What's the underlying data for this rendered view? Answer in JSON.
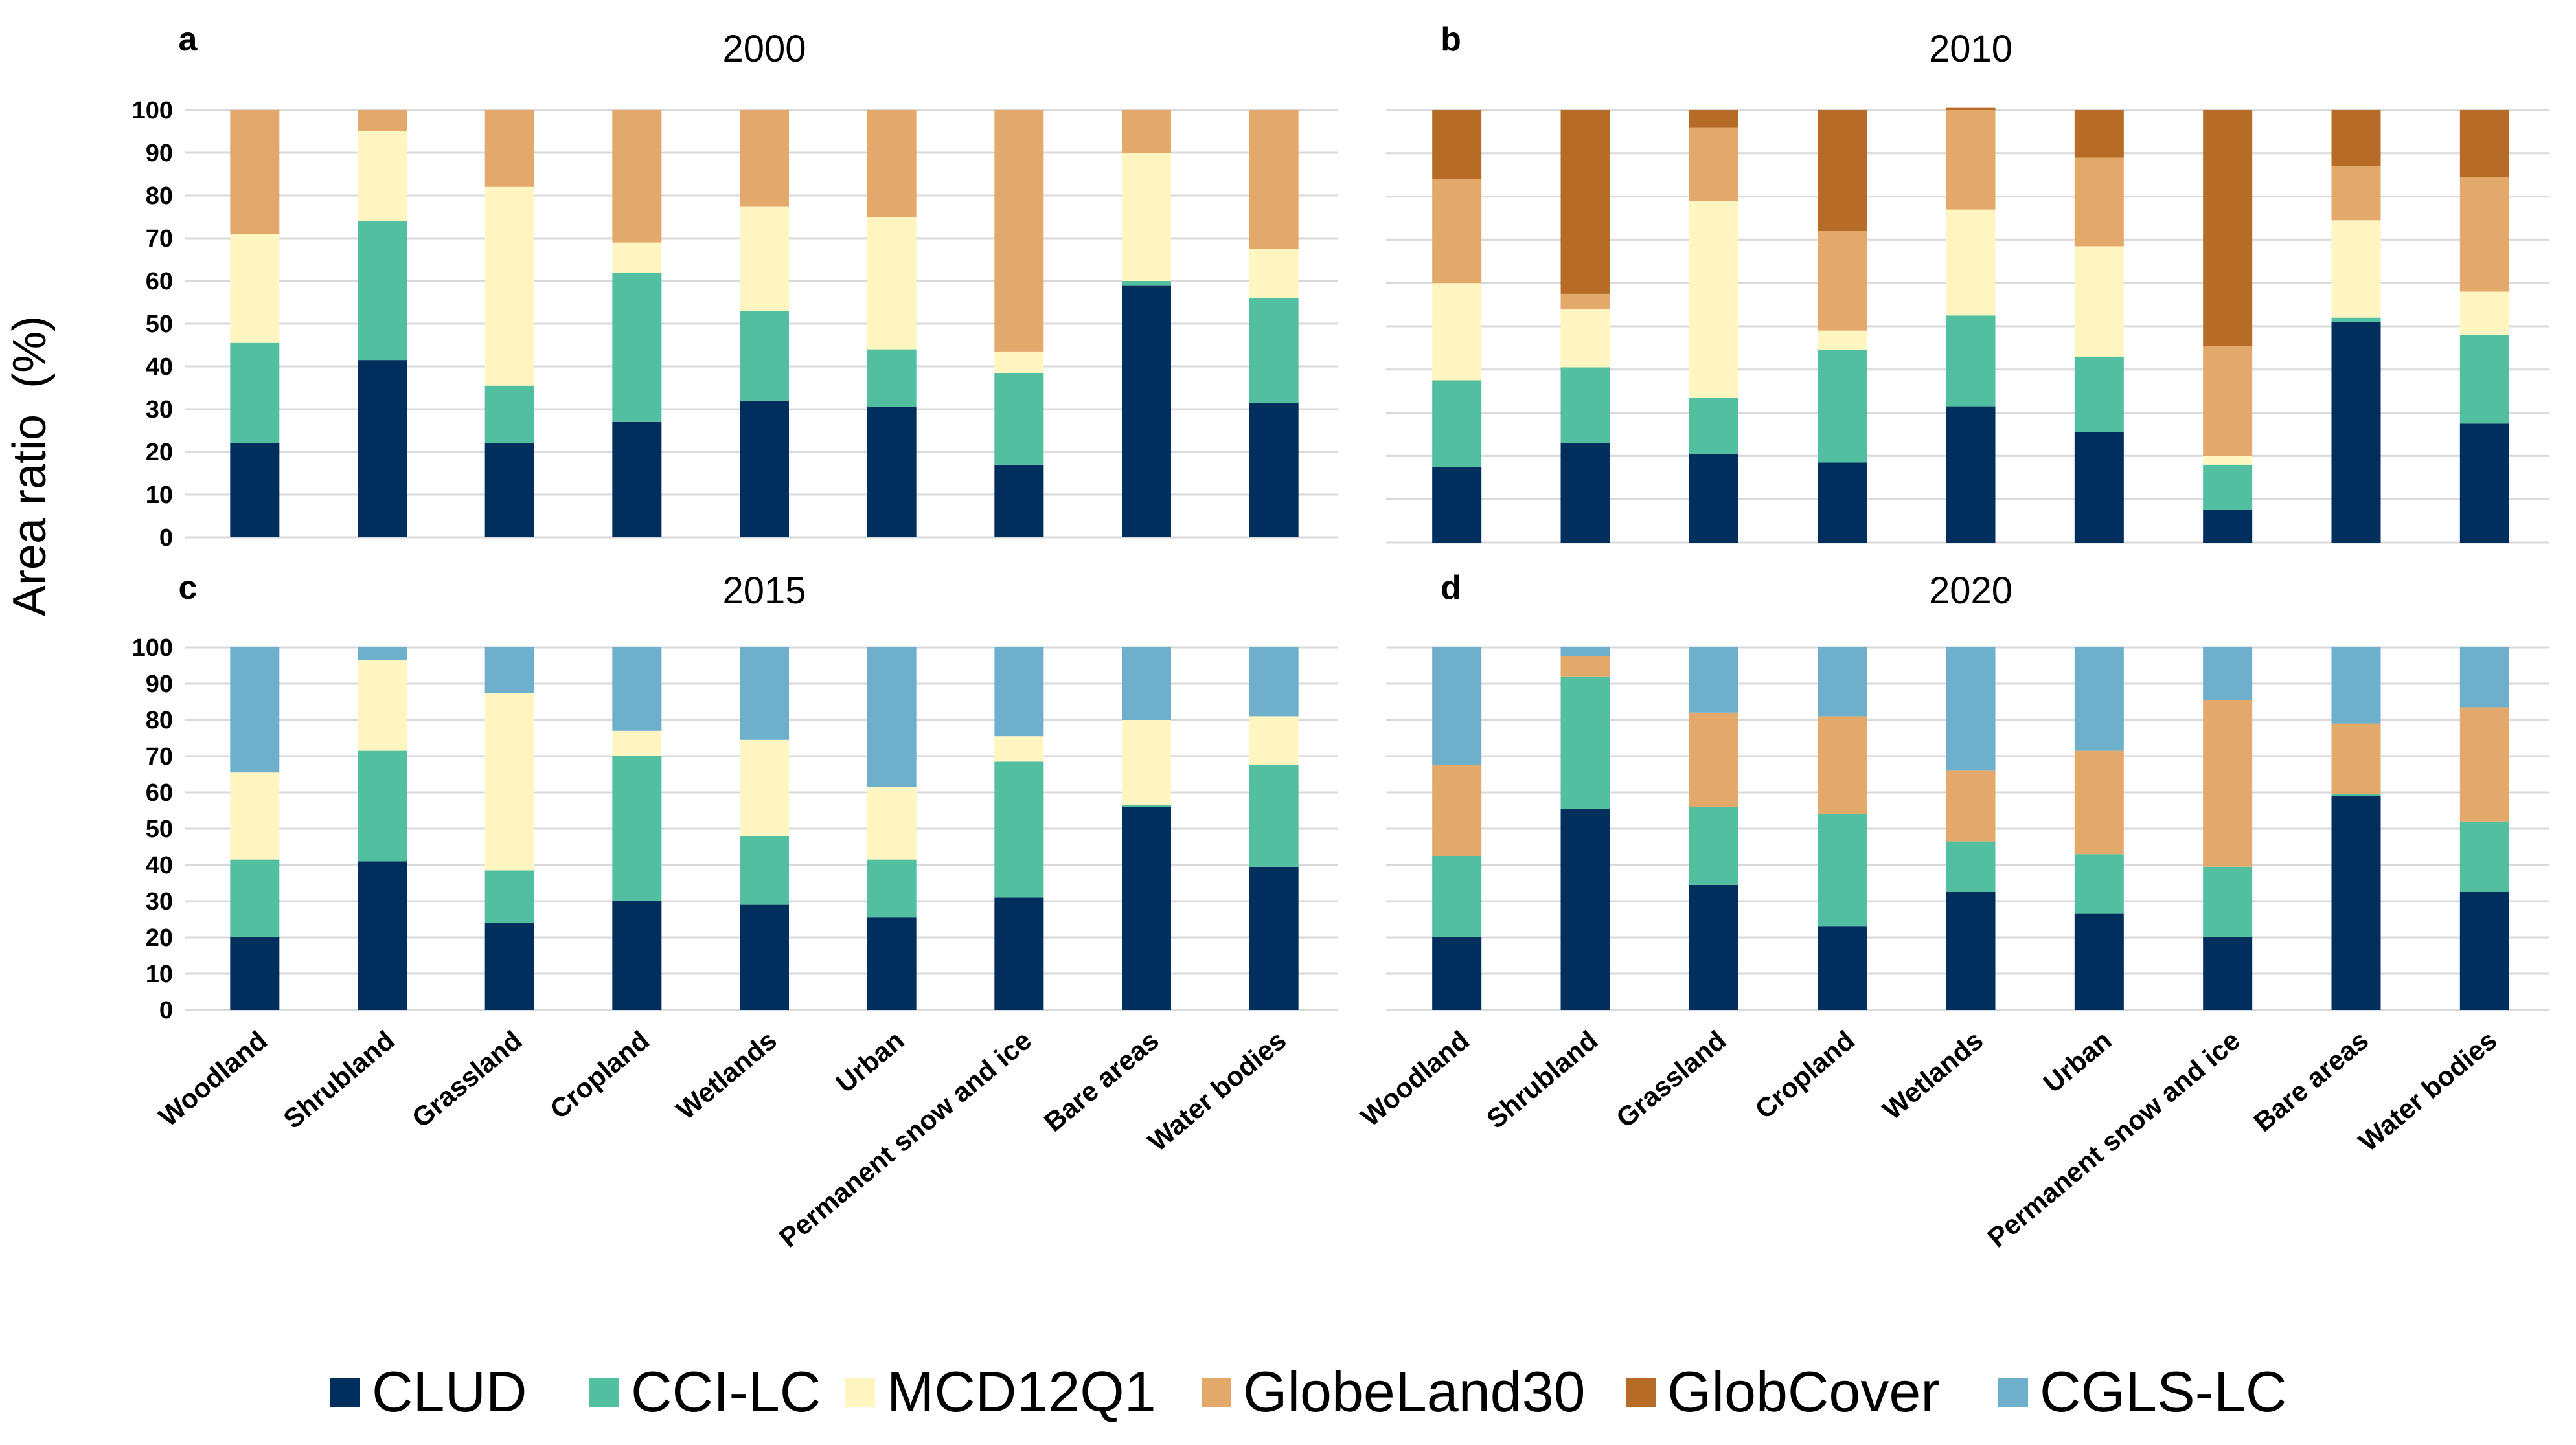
{
  "colors": {
    "CLUD": "#002f5e",
    "CCI-LC": "#52c0a0",
    "MCD12Q1": "#fff5c0",
    "GlobeLand30": "#e3a96b",
    "GlobCover": "#b66c27",
    "CGLS-LC": "#6eafcb"
  },
  "ylabel": "Area ratio  (%)",
  "legend": [
    "CLUD",
    "CCI-LC",
    "MCD12Q1",
    "GlobeLand30",
    "GlobCover",
    "CGLS-LC"
  ],
  "chart_data": [
    {
      "type": "bar",
      "stacked": true,
      "panel": "a",
      "title": "2000",
      "ylim": [
        0,
        100
      ],
      "yticks": [
        0,
        10,
        20,
        30,
        40,
        50,
        60,
        70,
        80,
        90,
        100
      ],
      "categories": [
        "Woodland",
        "Shrubland",
        "Grassland",
        "Cropland",
        "Wetlands",
        "Urban",
        "Permanent snow and ice",
        "Bare areas",
        "Water bodies"
      ],
      "series": [
        {
          "name": "CLUD",
          "values": [
            22,
            41.5,
            22,
            27,
            32,
            30.5,
            17,
            59,
            31.5
          ]
        },
        {
          "name": "CCI-LC",
          "values": [
            23.5,
            32.5,
            13.5,
            35,
            21,
            13.5,
            21.5,
            1,
            24.5
          ]
        },
        {
          "name": "MCD12Q1",
          "values": [
            25.5,
            21,
            46.5,
            7,
            24.5,
            31,
            5,
            30,
            11.5
          ]
        },
        {
          "name": "GlobeLand30",
          "values": [
            29,
            5,
            18,
            31,
            22.5,
            25,
            56.5,
            10,
            32.5
          ]
        }
      ]
    },
    {
      "type": "bar",
      "stacked": true,
      "panel": "b",
      "title": "2010",
      "ylim": [
        0,
        100
      ],
      "yticks": [
        0,
        10,
        20,
        30,
        40,
        50,
        60,
        70,
        80,
        90,
        100
      ],
      "categories": [
        "Woodland",
        "Shrubland",
        "Grassland",
        "Cropland",
        "Wetlands",
        "Urban",
        "Permanent snow and ice",
        "Bare areas",
        "Water bodies"
      ],
      "series": [
        {
          "name": "CLUD",
          "values": [
            17.5,
            23,
            20.5,
            18.5,
            31.5,
            25.5,
            7.5,
            51,
            27.5
          ]
        },
        {
          "name": "CCI-LC",
          "values": [
            20,
            17.5,
            13,
            26,
            21,
            17.5,
            10.5,
            1,
            20.5
          ]
        },
        {
          "name": "MCD12Q1",
          "values": [
            22.5,
            13.5,
            45.5,
            4.5,
            24.5,
            25.5,
            2,
            22.5,
            10
          ]
        },
        {
          "name": "GlobeLand30",
          "values": [
            24,
            3.5,
            17,
            23,
            23,
            20.5,
            25.5,
            12.5,
            26.5
          ]
        },
        {
          "name": "GlobCover",
          "values": [
            16,
            42.5,
            4,
            28,
            0.5,
            11,
            54.5,
            13,
            15.5
          ]
        }
      ]
    },
    {
      "type": "bar",
      "stacked": true,
      "panel": "c",
      "title": "2015",
      "ylim": [
        0,
        100
      ],
      "yticks": [
        0,
        10,
        20,
        30,
        40,
        50,
        60,
        70,
        80,
        90,
        100
      ],
      "categories": [
        "Woodland",
        "Shrubland",
        "Grassland",
        "Cropland",
        "Wetlands",
        "Urban",
        "Permanent snow and ice",
        "Bare areas",
        "Water bodies"
      ],
      "series": [
        {
          "name": "CLUD",
          "values": [
            20,
            41,
            24,
            30,
            29,
            25.5,
            31,
            56,
            39.5
          ]
        },
        {
          "name": "CCI-LC",
          "values": [
            21.5,
            30.5,
            14.5,
            40,
            19,
            16,
            37.5,
            0.5,
            28
          ]
        },
        {
          "name": "MCD12Q1",
          "values": [
            24,
            25,
            49,
            7,
            26.5,
            20,
            7,
            23.5,
            13.5
          ]
        },
        {
          "name": "CGLS-LC",
          "values": [
            34.5,
            3.5,
            12.5,
            23,
            25.5,
            38.5,
            24.5,
            20,
            19
          ]
        }
      ]
    },
    {
      "type": "bar",
      "stacked": true,
      "panel": "d",
      "title": "2020",
      "ylim": [
        0,
        100
      ],
      "yticks": [
        0,
        10,
        20,
        30,
        40,
        50,
        60,
        70,
        80,
        90,
        100
      ],
      "categories": [
        "Woodland",
        "Shrubland",
        "Grassland",
        "Cropland",
        "Wetlands",
        "Urban",
        "Permanent snow and ice",
        "Bare areas",
        "Water bodies"
      ],
      "series": [
        {
          "name": "CLUD",
          "values": [
            20,
            55.5,
            34.5,
            23,
            32.5,
            26.5,
            20,
            59,
            32.5
          ]
        },
        {
          "name": "CCI-LC",
          "values": [
            22.5,
            36.5,
            21.5,
            31,
            14,
            16.5,
            19.5,
            0.5,
            19.5
          ]
        },
        {
          "name": "GlobeLand30",
          "values": [
            25,
            5.5,
            26,
            27,
            19.5,
            28.5,
            46,
            19.5,
            31.5
          ]
        },
        {
          "name": "CGLS-LC",
          "values": [
            32.5,
            2.5,
            18,
            19,
            34,
            28.5,
            14.5,
            21,
            16.5
          ]
        }
      ]
    }
  ]
}
